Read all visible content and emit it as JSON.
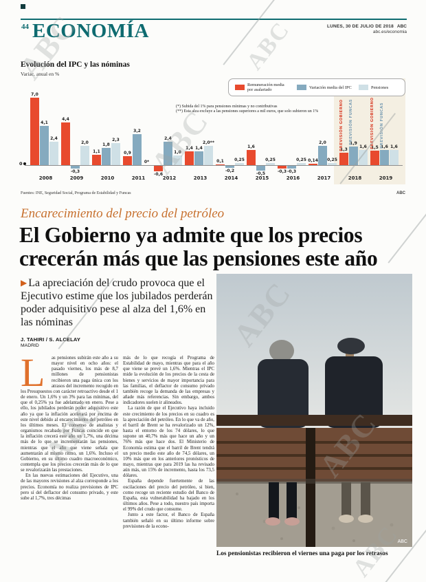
{
  "page": {
    "number": "44",
    "section": "ECONOMÍA",
    "date_line": "LUNES, 30 DE JULIO DE 2018",
    "brand": "ABC",
    "site": "abc.es/economia"
  },
  "chart": {
    "title": "Evolución del IPC y las nóminas",
    "subtitle": "Variac. anual en %",
    "zero_label": "0",
    "footnotes": [
      "(*)  Subida del 1% para pensiones mínimas y no contributivas",
      "(**) Esta alza excluye a las pensiones superiores a mil euros, que solo subieron un 1%"
    ],
    "forecast_labels": [
      "PREVISIÓN GOBIERNO",
      "PREVISIÓN FUNCAS"
    ],
    "source": "Fuentes: INE, Seguridad Social, Programa de Estabilidad y Funcas",
    "credit": "ABC"
  },
  "chart_data": {
    "type": "bar",
    "title": "Evolución del IPC y las nóminas",
    "ylabel": "Variación anual en %",
    "ylim": [
      -0.8,
      7.5
    ],
    "grid": false,
    "legend_position": "top-right",
    "categories": [
      "2008",
      "2009",
      "2010",
      "2011",
      "2012",
      "2013",
      "2014",
      "2015",
      "2016",
      "2017",
      "2018",
      "2019"
    ],
    "highlight_years": [
      "2018",
      "2019"
    ],
    "series": [
      {
        "key": "asalariado",
        "name": "Remuneración media por asalariado",
        "color": "#e84a2e",
        "values": [
          7.0,
          4.4,
          1.1,
          0.9,
          -0.6,
          1.4,
          0.1,
          1.6,
          -0.3,
          0.14,
          1.3,
          1.5
        ],
        "labels": [
          "7,0",
          "4,4",
          "1,1",
          "0,9",
          "-0,6",
          "1,4",
          "0,1",
          "1,6",
          "-0,3",
          "0,14",
          "1,3",
          "1,5"
        ]
      },
      {
        "key": "ipc",
        "name": "Variación media del IPC",
        "color": "#85aabf",
        "values": [
          4.1,
          -0.3,
          1.8,
          3.2,
          2.4,
          1.4,
          -0.2,
          -0.5,
          -0.3,
          2.0,
          1.9,
          1.6
        ],
        "labels": [
          "4,1",
          "-0,3",
          "1,8",
          "3,2",
          "2,4",
          "1,4",
          "-0,2",
          "-0,5",
          "-0,3",
          "2,0",
          "1,9",
          "1,6"
        ]
      },
      {
        "key": "pensiones",
        "name": "Pensiones",
        "color": "#cfe0e6",
        "values": [
          2.4,
          2.0,
          2.3,
          0,
          1.0,
          2.0,
          0.25,
          0.25,
          0.25,
          0.25,
          1.6,
          1.6
        ],
        "labels": [
          "2,4",
          "2,0",
          "2,3",
          "0*",
          "1,0",
          "2,0**",
          "0,25",
          "0,25",
          "0,25",
          "0,25",
          "1,6",
          "1,6"
        ]
      }
    ]
  },
  "article": {
    "kicker": "Encarecimiento del precio del petróleo",
    "headline": "El Gobierno ya admite que los precios crecerán más que las pensiones este año",
    "lead": "La apreciación del crudo provoca que el Ejecutivo estime que los jubilados perderán poder adquisitivo pese al alza del 1,6% en las nóminas",
    "byline": "J. TAHIRI / S. ALCELAY",
    "dateline": "MADRID",
    "dropcap": "L",
    "col1_p1": "as pensiones subirán este año a su mayor nivel en ocho años: el pasado viernes, los más de 8,7 millones de pensionistas recibieron una paga única con los atrasos del incremento recogido en los Presupuestos con carácter retroactivo desde el 1 de enero. Un 1,6% y un 3% para las mínimas, del que el 0,25% ya fue adelantado en enero. Pese a ello, los jubilados perderán poder adquisitivo este año ya que la inflación acelerará por encima de este nivel debido al encarecimiento del petróleo en los últimos meses. El consenso de analistas y organismos recabado por Funcas coincide en que la inflación crecerá este año un 1,7%, una décima más de lo que se incrementarán las pensiones, mientras que el año que viene señala que aumentarán al mismo ritmo, un 1,6%. Incluso el Gobierno, en su último cuadro macroeconómico, contempla que los precios crecerán más de lo que se revalorizarán las prestaciones.",
    "col1_p2": "En las nuevas estimaciones del Ejecutivo, una de las mayores revisiones al alza corresponde a los precios. Economía no realiza previsiones de IPC pero sí del deflactor del consumo privado, y este sube al 1,7%, tres décimas",
    "col2_p1": "más de lo que recogía el Programa de Estabilidad de mayo, mientras que para el año que viene se prevé un 1,6%. Mientras el IPC mide la evolución de los precios de la cesta de bienes y servicios de mayor importancia para las familias, el deflactor de consumo privado también recoge la demanda de las empresas y añade más referencias. Sin embargo, ambos indicadores suelen ir alineados.",
    "col2_p2": "La razón de que el Ejecutivo haya incluido este crecimiento de los precios en su cuadro es la apreciación del petróleo. En lo que va de año, el barril de Brent se ha revalorizado un 12%, hasta el entorno de los 74 dólares, lo que supone un 40,7% más que hace un año y un 76% más que hace dos. El Ministerio de Economía estima que el barril de Brent tendrá un precio medio este año de 74,5 dólares, un 10% más que en los anteriores pronósticos de mayo, mientras que para 2019 las ha revisado aún más, un 15% de incremento, hasta los 73,5 dólares.",
    "col2_p3": "España depende fuertemente de las oscilaciones del precio del petróleo, si bien, como recoge un reciente estudio del Banco de España, esta vulnerabilidad ha bajado en los últimos años. Pese a todo, nuestro país importa el 99% del crudo que consume.",
    "col2_p4": "Junto a este factor, el Banco de España también señaló en su último informe sobre previsiones de la econo-"
  },
  "photo": {
    "caption": "Los pensionistas recibieron el viernes una paga por los retrasos",
    "credit": "ABC"
  },
  "watermark": "ABC"
}
